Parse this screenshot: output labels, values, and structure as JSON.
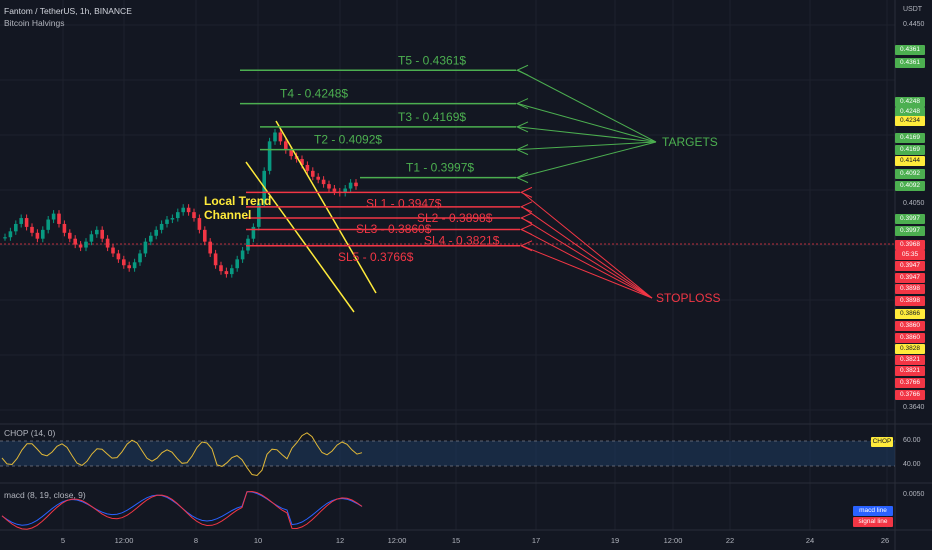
{
  "header": {
    "symbol_line": "Fantom / TetherUS, 1h, BINANCE",
    "indicator": "Bitcoin Halvings",
    "currency": "USDT"
  },
  "price_scale": {
    "ticks": [
      "0.4450",
      "0.4050",
      "0.3640"
    ],
    "tick_values": [
      0.445,
      0.405,
      0.364
    ],
    "ylim": [
      0.36,
      0.453
    ]
  },
  "targets": [
    {
      "label": "T5 - 0.4361$",
      "price": 0.4361
    },
    {
      "label": "T4 - 0.4248$",
      "price": 0.4248
    },
    {
      "label": "T3 - 0.4169$",
      "price": 0.4169
    },
    {
      "label": "T2 - 0.4092$",
      "price": 0.4092
    },
    {
      "label": "T1 - 0.3997$",
      "price": 0.3997
    }
  ],
  "stoplosses": [
    {
      "label": "SL1 - 0.3947$",
      "price": 0.3947
    },
    {
      "label": "SL2 - 0.3898$",
      "price": 0.3898
    },
    {
      "label": "SL3 - 0.3860$",
      "price": 0.386
    },
    {
      "label": "SL4 - 0.3821$",
      "price": 0.3821
    },
    {
      "label": "SL5 - 0.3766$",
      "price": 0.3766
    }
  ],
  "annotations": {
    "targets": "TARGETS",
    "stoploss": "STOPLOSS",
    "channel_line1": "Local Trend",
    "channel_line2": "Channel"
  },
  "price_tags": [
    {
      "text": "0.4361",
      "kind": "g"
    },
    {
      "text": "0.4361",
      "kind": "g"
    },
    {
      "text": "0.4248",
      "kind": "g"
    },
    {
      "text": "0.4248",
      "kind": "g"
    },
    {
      "text": "0.4234",
      "kind": "y"
    },
    {
      "text": "0.4169",
      "kind": "g"
    },
    {
      "text": "0.4169",
      "kind": "g"
    },
    {
      "text": "0.4144",
      "kind": "y"
    },
    {
      "text": "0.4092",
      "kind": "g"
    },
    {
      "text": "0.4092",
      "kind": "g"
    },
    {
      "text": "0.3997",
      "kind": "g"
    },
    {
      "text": "0.3997",
      "kind": "g"
    },
    {
      "text": "0.3968",
      "kind": "r"
    },
    {
      "text": "05:35",
      "kind": "r"
    },
    {
      "text": "0.3947",
      "kind": "r"
    },
    {
      "text": "0.3947",
      "kind": "r"
    },
    {
      "text": "0.3898",
      "kind": "r"
    },
    {
      "text": "0.3898",
      "kind": "r"
    },
    {
      "text": "0.3866",
      "kind": "y"
    },
    {
      "text": "0.3860",
      "kind": "r"
    },
    {
      "text": "0.3860",
      "kind": "r"
    },
    {
      "text": "0.3828",
      "kind": "y"
    },
    {
      "text": "0.3821",
      "kind": "r"
    },
    {
      "text": "0.3821",
      "kind": "r"
    },
    {
      "text": "0.3766",
      "kind": "r"
    },
    {
      "text": "0.3766",
      "kind": "r"
    }
  ],
  "chop": {
    "title": "CHOP (14, 0)",
    "badge": "CHOP",
    "ticks": [
      "60.00",
      "40.00"
    ]
  },
  "macd": {
    "title": "macd (8, 19, close, 9)",
    "tick": "0.0050",
    "legend_macd": "macd line",
    "legend_signal": "signal line"
  },
  "x_axis": [
    "5",
    "12:00",
    "8",
    "10",
    "12",
    "12:00",
    "15",
    "17",
    "19",
    "12:00",
    "22",
    "24",
    "26"
  ],
  "chart_data": {
    "type": "candlestick",
    "title": "Fantom / TetherUS, 1h, BINANCE",
    "ylabel": "USDT",
    "ylim": [
      0.36,
      0.453
    ],
    "last_price": 0.3968,
    "targets": [
      0.3997,
      0.4092,
      0.4169,
      0.4248,
      0.4361
    ],
    "stoplosses": [
      0.3947,
      0.3898,
      0.386,
      0.3821,
      0.3766
    ],
    "close_series": [
      0.3795,
      0.3815,
      0.384,
      0.386,
      0.383,
      0.381,
      0.379,
      0.382,
      0.3855,
      0.3875,
      0.384,
      0.381,
      0.379,
      0.377,
      0.376,
      0.378,
      0.3805,
      0.382,
      0.379,
      0.376,
      0.374,
      0.372,
      0.37,
      0.369,
      0.371,
      0.374,
      0.378,
      0.38,
      0.382,
      0.384,
      0.3855,
      0.386,
      0.388,
      0.3895,
      0.388,
      0.386,
      0.382,
      0.378,
      0.374,
      0.37,
      0.368,
      0.367,
      0.369,
      0.372,
      0.375,
      0.379,
      0.383,
      0.391,
      0.402,
      0.412,
      0.415,
      0.412,
      0.409,
      0.407,
      0.406,
      0.404,
      0.402,
      0.4,
      0.399,
      0.3975,
      0.396,
      0.395,
      0.3945,
      0.396,
      0.398,
      0.3968
    ]
  }
}
